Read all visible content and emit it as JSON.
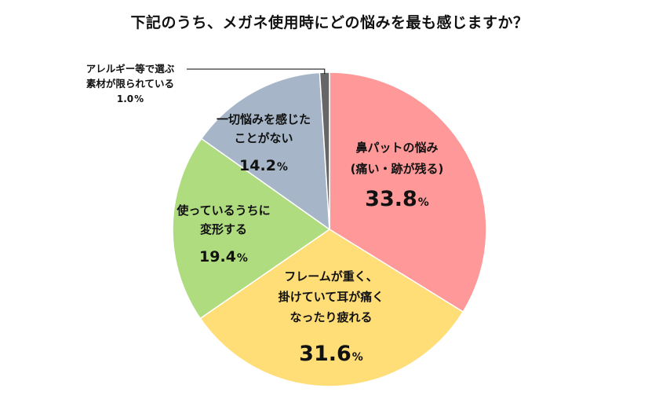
{
  "title": "下記のうち、メガネ使用時にどの悩みを最も感じますか？",
  "chart_data": {
    "type": "pie",
    "title": "下記のうち、メガネ使用時にどの悩みを最も感じますか？",
    "unit": "%",
    "slices": [
      {
        "label_lines": [
          "鼻パットの悩み",
          "(痛い・跡が残る)"
        ],
        "value": 33.8,
        "value_text": "33.8",
        "color": "#FF9999"
      },
      {
        "label_lines": [
          "フレームが重く、",
          "掛けていて耳が痛く",
          "なったり疲れる"
        ],
        "value": 31.6,
        "value_text": "31.6",
        "color": "#FFDD77"
      },
      {
        "label_lines": [
          "使っているうちに",
          "変形する"
        ],
        "value": 19.4,
        "value_text": "19.4",
        "color": "#B0DC80"
      },
      {
        "label_lines": [
          "一切悩みを感じた",
          "ことがない"
        ],
        "value": 14.2,
        "value_text": "14.2",
        "color": "#A6B6C8"
      },
      {
        "label_lines": [
          "アレルギー等で選ぶ",
          "素材が限られている"
        ],
        "value": 1.0,
        "value_text": "1.0",
        "color": "#666666"
      }
    ]
  }
}
